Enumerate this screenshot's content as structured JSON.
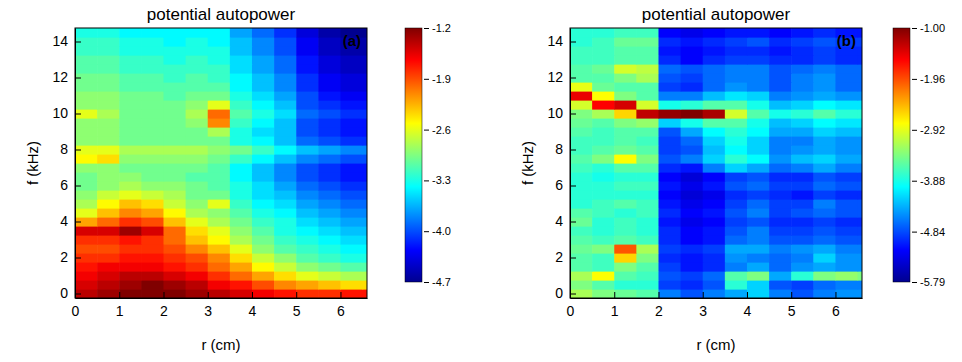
{
  "chart_data": [
    {
      "type": "heatmap",
      "title": "potential autopower",
      "panel_label": "(a)",
      "x_label": "r (cm)",
      "y_label": "f (kHz)",
      "xlim": [
        0,
        6.6
      ],
      "ylim": [
        -0.25,
        14.75
      ],
      "xticks": [
        0,
        1,
        2,
        3,
        4,
        5,
        6
      ],
      "yticks": [
        0,
        2,
        4,
        6,
        8,
        10,
        12,
        14
      ],
      "zlim": [
        -4.7,
        -1.2
      ],
      "zticks": [
        -1.2,
        -1.9,
        -2.6,
        -3.3,
        {
          "value": -4,
          "label": "-4.0"
        },
        -4.7
      ],
      "x": [
        0.25,
        0.75,
        1.25,
        1.75,
        2.25,
        2.75,
        3.25,
        3.75,
        4.25,
        4.75,
        5.25,
        5.75,
        6.25,
        6.75
      ],
      "y": [
        0,
        0.5,
        1,
        1.5,
        2,
        2.5,
        3,
        3.5,
        4,
        4.5,
        5,
        5.5,
        6,
        6.5,
        7,
        7.5,
        8,
        8.5,
        9,
        9.5,
        10,
        10.5,
        11,
        11.5,
        12,
        12.5,
        13,
        13.5,
        14,
        14.5
      ],
      "z": [
        [
          -1.4,
          -1.3,
          -1.2,
          -1.2,
          -1.2,
          -1.3,
          -1.4,
          -1.5,
          -1.6,
          -1.7,
          -1.8,
          -1.8,
          -1.7,
          -1.7
        ],
        [
          -1.5,
          -1.4,
          -1.3,
          -1.2,
          -1.3,
          -1.4,
          -1.6,
          -1.7,
          -1.9,
          -2.1,
          -2.2,
          -2.3,
          -2.4,
          -2.4
        ],
        [
          -1.6,
          -1.5,
          -1.4,
          -1.4,
          -1.5,
          -1.6,
          -1.8,
          -2.0,
          -2.2,
          -2.4,
          -2.6,
          -2.7,
          -2.8,
          -2.8
        ],
        [
          -1.7,
          -1.6,
          -1.6,
          -1.6,
          -1.7,
          -1.8,
          -2.0,
          -2.2,
          -2.5,
          -2.7,
          -2.9,
          -3.0,
          -3.1,
          -3.1
        ],
        [
          -1.8,
          -1.8,
          -1.7,
          -1.7,
          -1.8,
          -1.9,
          -2.1,
          -2.4,
          -2.7,
          -2.9,
          -3.1,
          -3.2,
          -3.3,
          -3.3
        ],
        [
          -1.9,
          -1.9,
          -1.8,
          -1.8,
          -1.9,
          -2.1,
          -2.3,
          -2.6,
          -2.9,
          -3.1,
          -3.2,
          -3.3,
          -3.4,
          -3.4
        ],
        [
          -1.8,
          -1.8,
          -1.7,
          -1.8,
          -2.0,
          -2.3,
          -2.5,
          -2.8,
          -3.0,
          -3.2,
          -3.3,
          -3.4,
          -3.5,
          -3.5
        ],
        [
          -1.5,
          -1.5,
          -1.3,
          -1.5,
          -2.0,
          -2.4,
          -2.6,
          -2.9,
          -3.1,
          -3.3,
          -3.4,
          -3.5,
          -3.6,
          -3.6
        ],
        [
          -2.2,
          -2.0,
          -1.8,
          -1.9,
          -2.3,
          -2.6,
          -2.8,
          -3.0,
          -3.2,
          -3.3,
          -3.5,
          -3.6,
          -3.7,
          -3.7
        ],
        [
          -2.6,
          -2.3,
          -2.1,
          -2.2,
          -2.5,
          -2.8,
          -2.9,
          -3.1,
          -3.3,
          -3.4,
          -3.6,
          -3.7,
          -3.8,
          -3.8
        ],
        [
          -2.8,
          -2.5,
          -2.3,
          -2.4,
          -2.7,
          -2.9,
          -2.6,
          -3.2,
          -3.4,
          -3.5,
          -3.7,
          -3.8,
          -3.9,
          -3.9
        ],
        [
          -2.9,
          -2.7,
          -2.6,
          -2.7,
          -2.8,
          -3.0,
          -3.0,
          -3.3,
          -3.5,
          -3.6,
          -3.8,
          -3.9,
          -4.0,
          -4.0
        ],
        [
          -3.0,
          -2.9,
          -2.8,
          -2.9,
          -2.9,
          -3.0,
          -3.1,
          -3.3,
          -3.5,
          -3.7,
          -3.9,
          -4.0,
          -4.1,
          -4.1
        ],
        [
          -3.0,
          -2.9,
          -2.9,
          -3.0,
          -3.0,
          -3.1,
          -3.1,
          -3.4,
          -3.6,
          -3.8,
          -4.0,
          -4.1,
          -4.2,
          -4.2
        ],
        [
          -2.9,
          -2.9,
          -3.0,
          -3.0,
          -3.0,
          -3.0,
          -3.1,
          -3.4,
          -3.6,
          -3.8,
          -4.0,
          -4.1,
          -4.2,
          -4.2
        ],
        [
          -2.5,
          -2.4,
          -2.9,
          -2.9,
          -2.9,
          -2.9,
          -3.0,
          -3.2,
          -3.4,
          -3.6,
          -3.8,
          -3.9,
          -4.0,
          -4.0
        ],
        [
          -2.6,
          -2.6,
          -2.8,
          -2.8,
          -2.8,
          -2.8,
          -2.9,
          -3.0,
          -3.2,
          -3.4,
          -3.6,
          -3.7,
          -3.8,
          -3.8
        ],
        [
          -2.9,
          -2.9,
          -3.0,
          -3.0,
          -3.0,
          -3.0,
          -3.0,
          -3.3,
          -3.4,
          -3.6,
          -3.9,
          -4.0,
          -4.1,
          -4.1
        ],
        [
          -2.9,
          -2.9,
          -3.0,
          -3.0,
          -3.0,
          -3.0,
          -2.8,
          -3.3,
          -3.5,
          -3.6,
          -4.0,
          -4.1,
          -4.2,
          -4.2
        ],
        [
          -2.9,
          -2.9,
          -3.0,
          -3.0,
          -3.0,
          -2.9,
          -2.1,
          -3.2,
          -3.4,
          -3.6,
          -4.0,
          -4.1,
          -4.2,
          -4.2
        ],
        [
          -2.6,
          -2.8,
          -3.0,
          -3.0,
          -3.0,
          -2.8,
          -2.0,
          -3.1,
          -3.3,
          -3.5,
          -3.9,
          -4.0,
          -4.1,
          -4.1
        ],
        [
          -2.9,
          -2.9,
          -3.0,
          -3.0,
          -3.0,
          -2.9,
          -2.6,
          -3.2,
          -3.4,
          -3.6,
          -4.0,
          -4.1,
          -4.2,
          -4.2
        ],
        [
          -2.9,
          -2.9,
          -3.0,
          -3.0,
          -3.1,
          -3.0,
          -3.0,
          -3.3,
          -3.5,
          -3.7,
          -4.0,
          -4.2,
          -4.3,
          -4.3
        ],
        [
          -3.0,
          -3.0,
          -3.1,
          -3.1,
          -3.1,
          -3.1,
          -3.1,
          -3.4,
          -3.6,
          -3.8,
          -4.1,
          -4.3,
          -4.4,
          -4.4
        ],
        [
          -3.0,
          -3.0,
          -3.1,
          -3.1,
          -3.2,
          -3.1,
          -3.2,
          -3.4,
          -3.6,
          -3.8,
          -4.1,
          -4.3,
          -4.4,
          -4.4
        ],
        [
          -3.1,
          -3.1,
          -3.2,
          -3.2,
          -3.2,
          -3.2,
          -3.2,
          -3.5,
          -3.7,
          -3.9,
          -4.2,
          -4.4,
          -4.5,
          -4.5
        ],
        [
          -3.1,
          -3.1,
          -3.2,
          -3.2,
          -3.3,
          -3.2,
          -3.3,
          -3.5,
          -3.7,
          -3.9,
          -4.2,
          -4.4,
          -4.5,
          -4.5
        ],
        [
          -3.2,
          -3.2,
          -3.3,
          -3.3,
          -3.3,
          -3.3,
          -3.3,
          -3.6,
          -3.8,
          -4.0,
          -4.3,
          -4.5,
          -4.6,
          -4.6
        ],
        [
          -3.2,
          -3.2,
          -3.3,
          -3.3,
          -3.4,
          -3.3,
          -3.4,
          -3.6,
          -3.8,
          -4.0,
          -4.3,
          -4.5,
          -4.6,
          -4.6
        ],
        [
          -3.3,
          -3.3,
          -3.4,
          -3.4,
          -3.4,
          -3.4,
          -3.4,
          -3.7,
          -3.9,
          -4.1,
          -4.4,
          -4.6,
          -4.7,
          -4.7
        ]
      ]
    },
    {
      "type": "heatmap",
      "title": "potential autopower",
      "panel_label": "(b)",
      "x_label": "r (cm)",
      "y_label": "f (kHz)",
      "xlim": [
        0,
        6.6
      ],
      "ylim": [
        -0.25,
        14.75
      ],
      "xticks": [
        0,
        1,
        2,
        3,
        4,
        5,
        6
      ],
      "yticks": [
        0,
        2,
        4,
        6,
        8,
        10,
        12,
        14
      ],
      "zlim": [
        -5.79,
        -1
      ],
      "zticks": [
        {
          "value": -1,
          "label": "-1.00"
        },
        -1.96,
        -2.92,
        -3.88,
        -4.84,
        -5.79
      ],
      "x": [
        0.25,
        0.75,
        1.25,
        1.75,
        2.25,
        2.75,
        3.25,
        3.75,
        4.25,
        4.75,
        5.25,
        5.75,
        6.25,
        6.75
      ],
      "y": [
        0,
        0.5,
        1,
        1.5,
        2,
        2.5,
        3,
        3.5,
        4,
        4.5,
        5,
        5.5,
        6,
        6.5,
        7,
        7.5,
        8,
        8.5,
        9,
        9.5,
        10,
        10.5,
        11,
        11.5,
        12,
        12.5,
        13,
        13.5,
        14,
        14.5
      ],
      "z": [
        [
          -3.2,
          -3.4,
          -3.5,
          -3.6,
          -4.6,
          -4.8,
          -4.6,
          -4.4,
          -4.2,
          -4.6,
          -4.8,
          -4.6,
          -4.5,
          -4.5
        ],
        [
          -3.4,
          -3.6,
          -3.8,
          -3.8,
          -4.9,
          -5.0,
          -4.8,
          -3.8,
          -4.2,
          -4.8,
          -4.9,
          -4.7,
          -4.6,
          -4.6
        ],
        [
          -3.2,
          -2.8,
          -3.6,
          -3.7,
          -4.8,
          -4.9,
          -4.7,
          -3.6,
          -3.4,
          -4.4,
          -3.8,
          -3.4,
          -3.3,
          -3.4
        ],
        [
          -3.6,
          -3.7,
          -3.4,
          -3.6,
          -4.9,
          -5.1,
          -5.0,
          -4.6,
          -4.4,
          -4.7,
          -4.5,
          -4.4,
          -4.5,
          -4.5
        ],
        [
          -3.6,
          -3.7,
          -2.6,
          -3.4,
          -5.0,
          -5.1,
          -5.0,
          -4.5,
          -4.6,
          -4.7,
          -4.6,
          -4.2,
          -4.5,
          -4.5
        ],
        [
          -3.5,
          -3.4,
          -2.0,
          -3.2,
          -4.9,
          -5.0,
          -4.9,
          -4.4,
          -4.4,
          -4.6,
          -4.5,
          -4.4,
          -4.6,
          -4.6
        ],
        [
          -3.6,
          -3.7,
          -3.6,
          -3.7,
          -5.0,
          -5.2,
          -5.1,
          -4.7,
          -4.6,
          -4.8,
          -4.8,
          -4.7,
          -4.8,
          -4.8
        ],
        [
          -3.7,
          -3.8,
          -3.7,
          -3.8,
          -5.0,
          -5.2,
          -5.1,
          -4.8,
          -4.6,
          -4.9,
          -4.9,
          -4.8,
          -4.9,
          -4.9
        ],
        [
          -3.5,
          -3.8,
          -3.7,
          -3.8,
          -5.1,
          -5.3,
          -5.2,
          -4.9,
          -4.8,
          -5.0,
          -5.0,
          -4.9,
          -5.0,
          -5.0
        ],
        [
          -3.6,
          -3.7,
          -3.8,
          -3.7,
          -5.0,
          -5.2,
          -5.1,
          -4.8,
          -4.6,
          -4.9,
          -4.8,
          -4.7,
          -4.8,
          -4.8
        ],
        [
          -3.8,
          -3.7,
          -3.6,
          -3.7,
          -5.1,
          -5.3,
          -5.2,
          -4.9,
          -4.7,
          -4.9,
          -4.9,
          -4.6,
          -4.8,
          -4.8
        ],
        [
          -3.8,
          -3.8,
          -3.8,
          -3.8,
          -5.2,
          -5.4,
          -5.3,
          -5.0,
          -4.9,
          -5.0,
          -5.1,
          -4.9,
          -5.0,
          -5.0
        ],
        [
          -3.8,
          -3.8,
          -3.7,
          -3.7,
          -5.1,
          -5.3,
          -5.1,
          -4.8,
          -4.7,
          -4.9,
          -4.9,
          -4.7,
          -4.8,
          -4.8
        ],
        [
          -3.8,
          -3.9,
          -3.8,
          -3.8,
          -5.2,
          -5.4,
          -5.2,
          -4.9,
          -4.8,
          -5.0,
          -5.0,
          -4.8,
          -4.9,
          -4.9
        ],
        [
          -3.7,
          -3.8,
          -3.6,
          -3.6,
          -5.0,
          -5.1,
          -4.6,
          -4.2,
          -4.4,
          -4.7,
          -4.6,
          -4.4,
          -4.6,
          -4.6
        ],
        [
          -3.6,
          -3.4,
          -2.8,
          -3.4,
          -4.8,
          -4.6,
          -4.2,
          -3.8,
          -4.0,
          -4.5,
          -4.3,
          -4.2,
          -4.4,
          -4.4
        ],
        [
          -3.7,
          -3.6,
          -3.5,
          -3.6,
          -4.9,
          -4.8,
          -4.3,
          -4.0,
          -4.2,
          -4.6,
          -4.5,
          -4.4,
          -4.5,
          -4.5
        ],
        [
          -3.7,
          -3.7,
          -3.6,
          -3.7,
          -4.9,
          -4.7,
          -4.2,
          -3.9,
          -4.2,
          -4.6,
          -4.6,
          -4.4,
          -4.5,
          -4.5
        ],
        [
          -3.6,
          -3.7,
          -3.6,
          -3.6,
          -4.8,
          -4.4,
          -4.0,
          -3.8,
          -4.0,
          -4.4,
          -4.4,
          -4.2,
          -4.3,
          -4.3
        ],
        [
          -3.5,
          -3.6,
          -3.4,
          -3.3,
          -4.2,
          -3.9,
          -3.6,
          -3.6,
          -3.9,
          -4.3,
          -4.2,
          -4.0,
          -4.1,
          -4.1
        ],
        [
          -3.4,
          -3.2,
          -2.6,
          -1.3,
          -1.1,
          -1.0,
          -1.2,
          -3.0,
          -3.6,
          -3.9,
          -3.8,
          -3.6,
          -3.8,
          -3.8
        ],
        [
          -3.0,
          -1.6,
          -1.4,
          -3.0,
          -3.9,
          -3.8,
          -3.6,
          -3.6,
          -3.9,
          -4.3,
          -4.2,
          -4.0,
          -4.1,
          -4.1
        ],
        [
          -1.5,
          -2.8,
          -3.4,
          -3.6,
          -4.6,
          -4.6,
          -4.3,
          -4.1,
          -4.2,
          -4.6,
          -4.5,
          -4.4,
          -4.5,
          -4.5
        ],
        [
          -2.9,
          -3.5,
          -3.6,
          -3.6,
          -4.9,
          -5.0,
          -4.7,
          -4.5,
          -4.6,
          -4.8,
          -4.6,
          -4.5,
          -4.7,
          -4.7
        ],
        [
          -3.6,
          -3.6,
          -3.4,
          -3.2,
          -4.8,
          -4.9,
          -4.7,
          -4.6,
          -4.6,
          -4.8,
          -4.6,
          -4.5,
          -4.7,
          -4.7
        ],
        [
          -3.6,
          -3.5,
          -3.0,
          -3.1,
          -4.7,
          -4.8,
          -4.7,
          -4.6,
          -4.6,
          -4.8,
          -4.7,
          -4.6,
          -4.7,
          -4.7
        ],
        [
          -3.7,
          -3.7,
          -3.6,
          -3.6,
          -5.0,
          -5.2,
          -5.0,
          -4.9,
          -4.9,
          -5.0,
          -5.0,
          -4.9,
          -5.0,
          -5.0
        ],
        [
          -3.7,
          -3.7,
          -3.6,
          -3.6,
          -5.1,
          -5.2,
          -5.1,
          -5.0,
          -5.0,
          -5.1,
          -5.0,
          -4.9,
          -5.0,
          -5.0
        ],
        [
          -3.8,
          -3.7,
          -3.5,
          -3.5,
          -5.0,
          -5.1,
          -5.0,
          -4.9,
          -4.8,
          -5.0,
          -4.9,
          -4.8,
          -4.9,
          -4.9
        ],
        [
          -3.8,
          -3.8,
          -3.7,
          -3.7,
          -5.2,
          -5.3,
          -5.2,
          -5.1,
          -5.1,
          -5.2,
          -5.1,
          -5.0,
          -5.1,
          -5.1
        ]
      ]
    }
  ]
}
